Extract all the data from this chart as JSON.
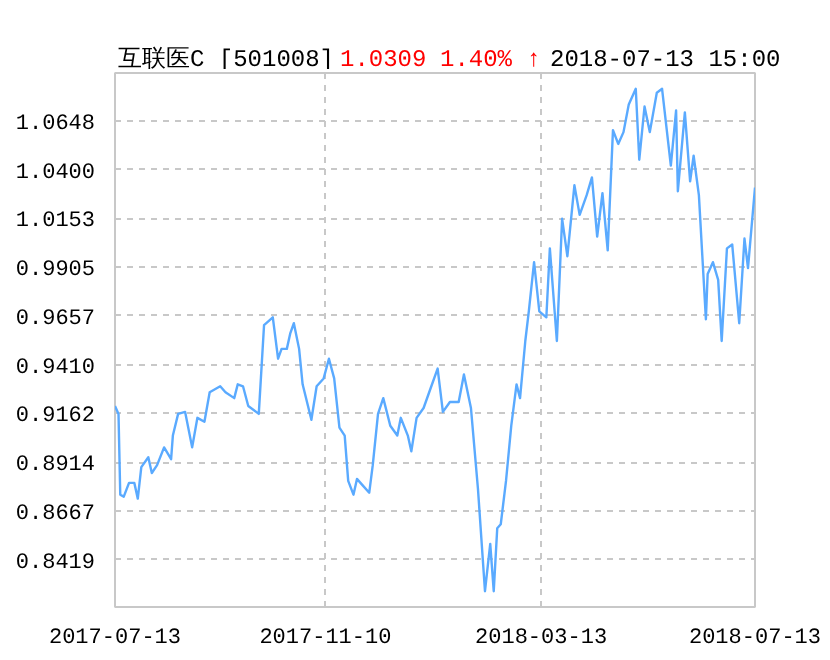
{
  "chart_data": {
    "type": "line",
    "title": "互联医C [501008]",
    "annotations": [
      "1.0309",
      "1.40% ↑",
      "2018-07-13 15:00"
    ],
    "x": [
      "2017-07-13",
      "2017-07-15",
      "2017-07-16",
      "2017-07-18",
      "2017-07-21",
      "2017-07-24",
      "2017-07-26",
      "2017-07-28",
      "2017-08-01",
      "2017-08-03",
      "2017-08-06",
      "2017-08-10",
      "2017-08-14",
      "2017-08-15",
      "2017-08-18",
      "2017-08-22",
      "2017-08-26",
      "2017-08-29",
      "2017-09-02",
      "2017-09-05",
      "2017-09-11",
      "2017-09-14",
      "2017-09-19",
      "2017-09-21",
      "2017-09-24",
      "2017-09-27",
      "2017-10-03",
      "2017-10-06",
      "2017-10-11",
      "2017-10-14",
      "2017-10-16",
      "2017-10-19",
      "2017-10-21",
      "2017-10-23",
      "2017-10-26",
      "2017-10-28",
      "2017-11-02",
      "2017-11-05",
      "2017-11-09",
      "2017-11-12",
      "2017-11-15",
      "2017-11-18",
      "2017-11-21",
      "2017-11-23",
      "2017-11-26",
      "2017-11-28",
      "2017-12-01",
      "2017-12-05",
      "2017-12-07",
      "2017-12-10",
      "2017-12-13",
      "2017-12-17",
      "2017-12-21",
      "2017-12-23",
      "2017-12-27",
      "2017-12-29",
      "2018-01-01",
      "2018-01-05",
      "2018-01-09",
      "2018-01-13",
      "2018-01-16",
      "2018-01-20",
      "2018-01-25",
      "2018-01-28",
      "2018-02-01",
      "2018-02-05",
      "2018-02-09",
      "2018-02-12",
      "2018-02-14",
      "2018-02-16",
      "2018-02-18",
      "2018-02-21",
      "2018-02-24",
      "2018-02-27",
      "2018-03-01",
      "2018-03-04",
      "2018-03-06",
      "2018-03-09",
      "2018-03-12",
      "2018-03-16",
      "2018-03-18",
      "2018-03-22",
      "2018-03-25",
      "2018-03-28",
      "2018-04-01",
      "2018-04-04",
      "2018-04-08",
      "2018-04-11",
      "2018-04-14",
      "2018-04-17",
      "2018-04-20",
      "2018-04-23",
      "2018-04-26",
      "2018-04-29",
      "2018-05-02",
      "2018-05-06",
      "2018-05-08",
      "2018-05-11",
      "2018-05-14",
      "2018-05-18",
      "2018-05-21",
      "2018-05-26",
      "2018-05-29",
      "2018-05-30",
      "2018-06-03",
      "2018-06-06",
      "2018-06-08",
      "2018-06-11",
      "2018-06-15",
      "2018-06-16",
      "2018-06-19",
      "2018-06-22",
      "2018-06-24",
      "2018-06-27",
      "2018-06-30",
      "2018-07-04",
      "2018-07-07",
      "2018-07-09",
      "2018-07-13"
    ],
    "series": [
      {
        "color": "#5aaaff",
        "values": [
          0.92,
          0.916,
          0.875,
          0.874,
          0.881,
          0.881,
          0.873,
          0.889,
          0.894,
          0.886,
          0.89,
          0.899,
          0.893,
          0.905,
          0.916,
          0.917,
          0.899,
          0.914,
          0.912,
          0.927,
          0.93,
          0.927,
          0.924,
          0.931,
          0.93,
          0.92,
          0.916,
          0.961,
          0.965,
          0.944,
          0.949,
          0.949,
          0.957,
          0.962,
          0.949,
          0.931,
          0.913,
          0.93,
          0.934,
          0.944,
          0.934,
          0.909,
          0.905,
          0.882,
          0.875,
          0.883,
          0.88,
          0.876,
          0.89,
          0.916,
          0.924,
          0.91,
          0.905,
          0.914,
          0.905,
          0.897,
          0.914,
          0.919,
          0.929,
          0.939,
          0.917,
          0.922,
          0.922,
          0.936,
          0.919,
          0.878,
          0.826,
          0.85,
          0.826,
          0.858,
          0.86,
          0.882,
          0.91,
          0.931,
          0.924,
          0.953,
          0.968,
          0.993,
          0.968,
          0.965,
          1.0,
          0.953,
          1.015,
          0.996,
          1.032,
          1.017,
          1.027,
          1.036,
          1.006,
          1.028,
          0.999,
          1.06,
          1.053,
          1.059,
          1.073,
          1.081,
          1.045,
          1.072,
          1.059,
          1.079,
          1.081,
          1.042,
          1.07,
          1.029,
          1.069,
          1.034,
          1.047,
          1.027,
          0.964,
          0.987,
          0.993,
          0.984,
          0.953,
          1.0,
          1.002,
          0.962,
          1.005,
          0.99,
          1.0309
        ]
      }
    ],
    "xlim": [
      "2017-07-13",
      "2018-07-13"
    ],
    "xticks": [
      "2017-07-13",
      "2017-11-10",
      "2018-03-13",
      "2018-07-13"
    ],
    "ylim": [
      0.818,
      1.089
    ],
    "yticks": [
      0.8419,
      0.8667,
      0.8914,
      0.9162,
      {
        "value": 0.941,
        "label": "0.9410"
      },
      0.9657,
      0.9905,
      1.0153,
      {
        "value": 1.04,
        "label": "1.0400"
      },
      1.0648
    ],
    "grid": true,
    "marker": "none",
    "line_style": "solid"
  }
}
